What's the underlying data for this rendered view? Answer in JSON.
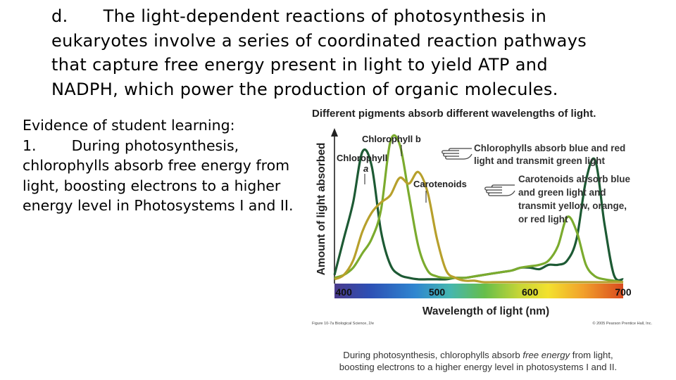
{
  "heading": {
    "marker": "d.",
    "text": "The light-dependent reactions of photosynthesis in eukaryotes involve a series of coordinated reaction pathways that capture free energy present in light to yield ATP and NADPH, which power the production of organic molecules."
  },
  "evidence": {
    "title": "Evidence of student learning:",
    "item_number": "1.",
    "item_text": "During photosynthesis, chlorophylls absorb free energy from light, boosting electrons to a higher energy level in Photosystems I and II."
  },
  "chart_data": {
    "type": "line",
    "title": "Different pigments absorb different wavelengths of light.",
    "xlabel": "Wavelength of light (nm)",
    "ylabel": "Amount of light absorbed",
    "xlim": [
      390,
      700
    ],
    "xticks": [
      400,
      500,
      600,
      700
    ],
    "x": [
      390,
      400,
      410,
      420,
      430,
      440,
      450,
      460,
      470,
      480,
      490,
      500,
      510,
      520,
      530,
      540,
      550,
      560,
      570,
      580,
      590,
      600,
      610,
      620,
      630,
      640,
      650,
      660,
      670,
      680,
      690,
      700
    ],
    "series": [
      {
        "name": "Chlorophyll a",
        "color": "#1d5a34",
        "values": [
          0.05,
          0.3,
          0.55,
          0.9,
          0.8,
          0.35,
          0.12,
          0.05,
          0.03,
          0.02,
          0.02,
          0.02,
          0.02,
          0.03,
          0.03,
          0.04,
          0.05,
          0.06,
          0.07,
          0.08,
          0.1,
          0.1,
          0.09,
          0.12,
          0.12,
          0.15,
          0.3,
          0.7,
          0.84,
          0.4,
          0.05,
          0.02
        ]
      },
      {
        "name": "Chlorophyll b",
        "color": "#7bab2e",
        "values": [
          0.03,
          0.05,
          0.1,
          0.2,
          0.3,
          0.5,
          0.97,
          0.95,
          0.6,
          0.25,
          0.08,
          0.04,
          0.03,
          0.03,
          0.03,
          0.04,
          0.05,
          0.06,
          0.07,
          0.08,
          0.1,
          0.11,
          0.12,
          0.15,
          0.25,
          0.45,
          0.35,
          0.12,
          0.04,
          0.02,
          0.01,
          0.0
        ]
      },
      {
        "name": "Carotenoids",
        "color": "#b7a02c",
        "values": [
          0.02,
          0.05,
          0.15,
          0.35,
          0.48,
          0.55,
          0.6,
          0.72,
          0.68,
          0.76,
          0.62,
          0.3,
          0.08,
          0.03,
          0.01,
          0.01,
          0.0,
          0.0,
          0.0,
          0.0,
          0.0,
          0.0,
          0.0,
          0.0,
          0.0,
          0.0,
          0.0,
          0.0,
          0.0,
          0.0,
          0.0,
          0.0
        ]
      }
    ],
    "labels": {
      "chl_b": "Chlorophyll b",
      "chl_a_line1": "Chlorophyll",
      "chl_a_line2": "a",
      "carotenoids": "Carotenoids"
    },
    "notes": {
      "chl_line1": "Chlorophylls absorb blue and red",
      "chl_line2": "light and transmit green light",
      "car_line1": "Carotenoids absorb blue",
      "car_line2": "and green light and",
      "car_line3": "transmit yellow, orange,",
      "car_line4": "or red light"
    },
    "credit_left": "Figure 10-7a  Biological Science, 2/e",
    "credit_right": "© 2005 Pearson Prentice Hall, Inc."
  },
  "caption": {
    "line1_a": "During photosynthesis, chlorophylls absorb ",
    "line1_em": "free energy",
    "line1_b": " from light,",
    "line2": "boosting electrons to a higher energy level in photosystems I and II."
  },
  "colors": {
    "chlorophyll_a": "#1d5a34",
    "chlorophyll_b": "#7bab2e",
    "carotenoids": "#b7a02c"
  }
}
